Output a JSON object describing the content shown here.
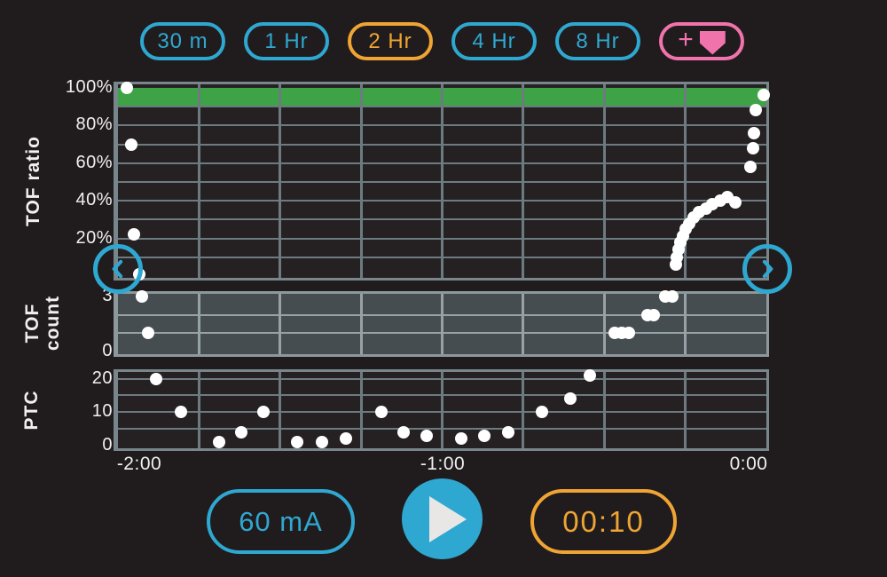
{
  "colors": {
    "teal": "#2fa8d1",
    "orange": "#f0a433",
    "pink": "#f173ab",
    "green": "#3ea247",
    "background": "#201c1d",
    "chart_bg": "#252122",
    "count_chart_bg": "#464d51",
    "grid": "#6d7b81",
    "grid_light": "#97a2a6",
    "border": "#78868c",
    "border_light": "#8d989c",
    "dot": "#ffffff",
    "text": "#f1efef",
    "play_triangle": "#e9e7e5"
  },
  "toolbar": {
    "range_buttons": [
      {
        "label": "30 m",
        "selected": false
      },
      {
        "label": "1 Hr",
        "selected": false
      },
      {
        "label": "2 Hr",
        "selected": true
      },
      {
        "label": "4 Hr",
        "selected": false
      },
      {
        "label": "8 Hr",
        "selected": false
      }
    ],
    "marker_button": {
      "plus_label": "+",
      "icon": "marker-pentagon-icon"
    }
  },
  "x_axis": {
    "tick_labels": [
      "-2:00",
      "-1:00",
      "0:00"
    ]
  },
  "chart_data": [
    {
      "id": "tof_ratio",
      "type": "scatter",
      "ylabel": "TOF ratio",
      "ylim": [
        0,
        100
      ],
      "xlim_minutes": [
        -120,
        0
      ],
      "grid": "10% horizontal steps, 15-minute vertical steps",
      "target_band": {
        "from_pct": 90,
        "to_pct": 100,
        "color": "#3ea247"
      },
      "yticks": [
        {
          "label": "100%",
          "v": 100
        },
        {
          "label": "80%",
          "v": 80
        },
        {
          "label": "60%",
          "v": 60
        },
        {
          "label": "40%",
          "v": 40
        },
        {
          "label": "20%",
          "v": 20
        }
      ],
      "points": [
        {
          "t": -118.4,
          "v": 100
        },
        {
          "t": -117.5,
          "v": 70
        },
        {
          "t": -117.0,
          "v": 22
        },
        {
          "t": -116.0,
          "v": 1
        },
        {
          "t": -16.8,
          "v": 6
        },
        {
          "t": -16.5,
          "v": 10
        },
        {
          "t": -16.2,
          "v": 14
        },
        {
          "t": -15.9,
          "v": 18
        },
        {
          "t": -15.4,
          "v": 21
        },
        {
          "t": -14.9,
          "v": 25
        },
        {
          "t": -14.2,
          "v": 28
        },
        {
          "t": -13.4,
          "v": 31
        },
        {
          "t": -12.4,
          "v": 34
        },
        {
          "t": -11.2,
          "v": 36
        },
        {
          "t": -10.0,
          "v": 38
        },
        {
          "t": -8.6,
          "v": 40
        },
        {
          "t": -7.2,
          "v": 42
        },
        {
          "t": -5.7,
          "v": 39
        },
        {
          "t": -3.0,
          "v": 58
        },
        {
          "t": -2.4,
          "v": 68
        },
        {
          "t": -2.3,
          "v": 76
        },
        {
          "t": -1.9,
          "v": 88
        },
        {
          "t": -0.5,
          "v": 96
        }
      ]
    },
    {
      "id": "tof_count",
      "type": "scatter",
      "ylabel_lines": [
        "TOF",
        "count"
      ],
      "ylim": [
        0,
        3
      ],
      "xlim_minutes": [
        -120,
        0
      ],
      "yticks": [
        {
          "label": "3",
          "v": 3
        },
        {
          "label": "0",
          "v": 0
        }
      ],
      "points": [
        {
          "t": -115.6,
          "v": 3
        },
        {
          "t": -114.5,
          "v": 1
        },
        {
          "t": -28.1,
          "v": 1
        },
        {
          "t": -26.8,
          "v": 1
        },
        {
          "t": -25.4,
          "v": 1
        },
        {
          "t": -22.0,
          "v": 2
        },
        {
          "t": -20.9,
          "v": 2
        },
        {
          "t": -18.7,
          "v": 3
        },
        {
          "t": -17.4,
          "v": 3
        }
      ]
    },
    {
      "id": "ptc",
      "type": "scatter",
      "ylabel": "PTC",
      "ylim": [
        0,
        22
      ],
      "xlim_minutes": [
        -120,
        0
      ],
      "yticks": [
        {
          "label": "20",
          "v": 20
        },
        {
          "label": "10",
          "v": 10
        },
        {
          "label": "0",
          "v": 0
        }
      ],
      "points": [
        {
          "t": -112.9,
          "v": 20
        },
        {
          "t": -108.4,
          "v": 10
        },
        {
          "t": -101.3,
          "v": 1
        },
        {
          "t": -97.1,
          "v": 4
        },
        {
          "t": -93.0,
          "v": 10
        },
        {
          "t": -86.8,
          "v": 1
        },
        {
          "t": -82.2,
          "v": 1
        },
        {
          "t": -77.8,
          "v": 2
        },
        {
          "t": -71.2,
          "v": 10
        },
        {
          "t": -67.1,
          "v": 4
        },
        {
          "t": -62.9,
          "v": 3
        },
        {
          "t": -56.5,
          "v": 2
        },
        {
          "t": -52.2,
          "v": 3
        },
        {
          "t": -47.7,
          "v": 4
        },
        {
          "t": -41.5,
          "v": 10
        },
        {
          "t": -36.3,
          "v": 14
        },
        {
          "t": -32.7,
          "v": 21
        }
      ]
    }
  ],
  "controls": {
    "current_label": "60 mA",
    "play_icon": "play-icon",
    "timer_label": "00:10"
  },
  "nav": {
    "left_arrow_icon": "chevron-left-icon",
    "right_arrow_icon": "chevron-right-icon"
  }
}
